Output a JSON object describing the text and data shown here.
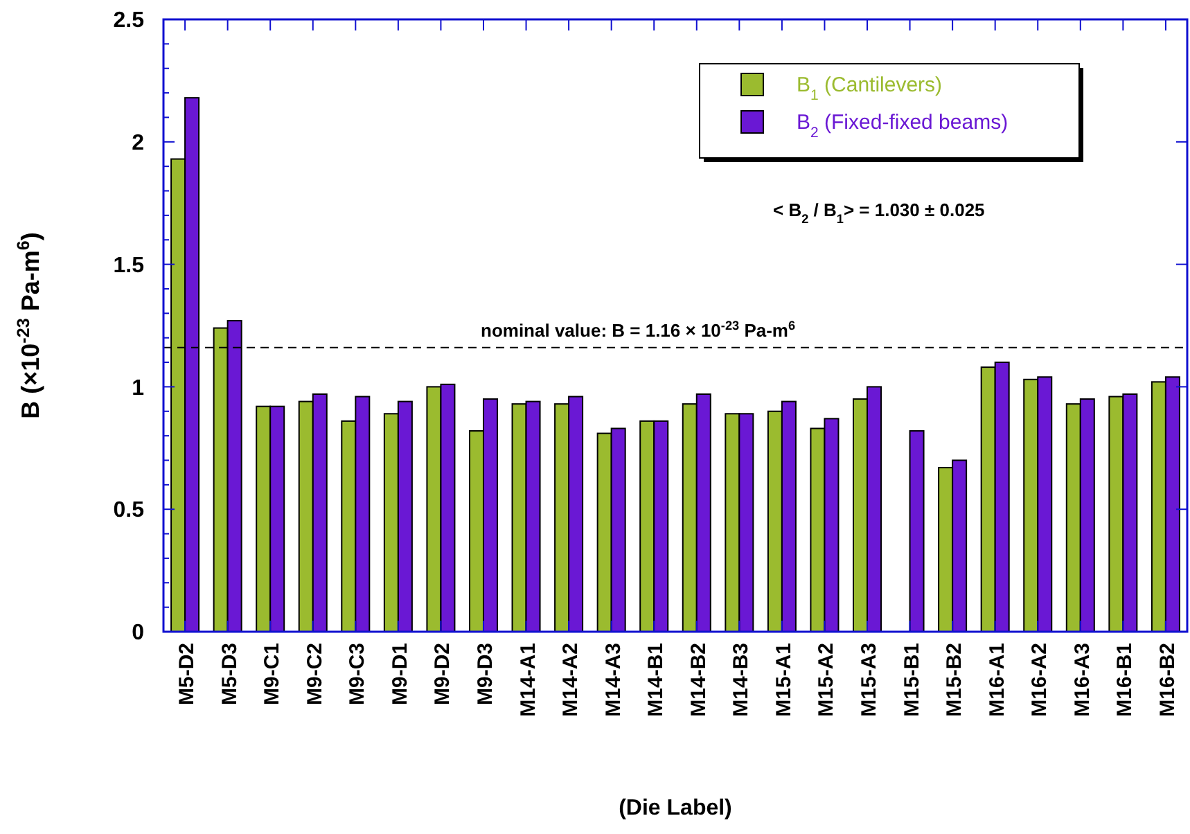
{
  "chart_data": {
    "type": "bar",
    "xlabel": "(Die Label)",
    "ylabel": "B  (×10$^{-23}$  Pa-m$^{6}$)",
    "categories": [
      "M5-D2",
      "M5-D3",
      "M9-C1",
      "M9-C2",
      "M9-C3",
      "M9-D1",
      "M9-D2",
      "M9-D3",
      "M14-A1",
      "M14-A2",
      "M14-A3",
      "M14-B1",
      "M14-B2",
      "M14-B3",
      "M15-A1",
      "M15-A2",
      "M15-A3",
      "M15-B1",
      "M15-B2",
      "M16-A1",
      "M16-A2",
      "M16-A3",
      "M16-B1",
      "M16-B2"
    ],
    "series": [
      {
        "name": "B$_{1}$  (Cantilevers)",
        "color": "#9bbb2f",
        "values": [
          1.93,
          1.24,
          0.92,
          0.94,
          0.86,
          0.89,
          1.0,
          0.82,
          0.93,
          0.93,
          0.81,
          0.86,
          0.93,
          0.89,
          0.9,
          0.83,
          0.95,
          null,
          0.67,
          1.08,
          1.03,
          0.93,
          0.96,
          1.02
        ]
      },
      {
        "name": "B$_{2}$  (Fixed-fixed beams)",
        "color": "#6a18d4",
        "values": [
          2.18,
          1.27,
          0.92,
          0.97,
          0.96,
          0.94,
          1.01,
          0.95,
          0.94,
          0.96,
          0.83,
          0.86,
          0.97,
          0.89,
          0.94,
          0.87,
          1.0,
          0.82,
          0.7,
          1.1,
          1.04,
          0.95,
          0.97,
          1.04
        ]
      }
    ],
    "ylim": [
      0,
      2.5
    ],
    "yticks": [
      0,
      {
        "value": 0.1,
        "label": null
      },
      {
        "value": 0.2,
        "label": null
      },
      {
        "value": 0.3,
        "label": null
      },
      {
        "value": 0.4,
        "label": null
      },
      0.5,
      {
        "value": 0.6,
        "label": null
      },
      {
        "value": 0.7,
        "label": null
      },
      {
        "value": 0.8,
        "label": null
      },
      {
        "value": 0.9,
        "label": null
      },
      1,
      {
        "value": 1.1,
        "label": null
      },
      {
        "value": 1.2,
        "label": null
      },
      {
        "value": 1.3,
        "label": null
      },
      {
        "value": 1.4,
        "label": null
      },
      1.5,
      {
        "value": 1.6,
        "label": null
      },
      {
        "value": 1.7,
        "label": null
      },
      {
        "value": 1.8,
        "label": null
      },
      {
        "value": 1.9,
        "label": null
      },
      2,
      {
        "value": 2.1,
        "label": null
      },
      {
        "value": 2.2,
        "label": null
      },
      {
        "value": 2.3,
        "label": null
      },
      {
        "value": 2.4,
        "label": null
      },
      2.5
    ],
    "ref_lines": [
      {
        "axis": "y",
        "value": 1.16,
        "label": "nominal value:  B = 1.16 × 10$^{-23}$  Pa-m$^{6}$",
        "color": "#000000",
        "line_style": "dashed"
      }
    ],
    "annotations": [
      "< B$_{2}$ / B$_{1}$>  =  1.030 ± 0.025"
    ],
    "legend": "top right",
    "grid": false
  }
}
